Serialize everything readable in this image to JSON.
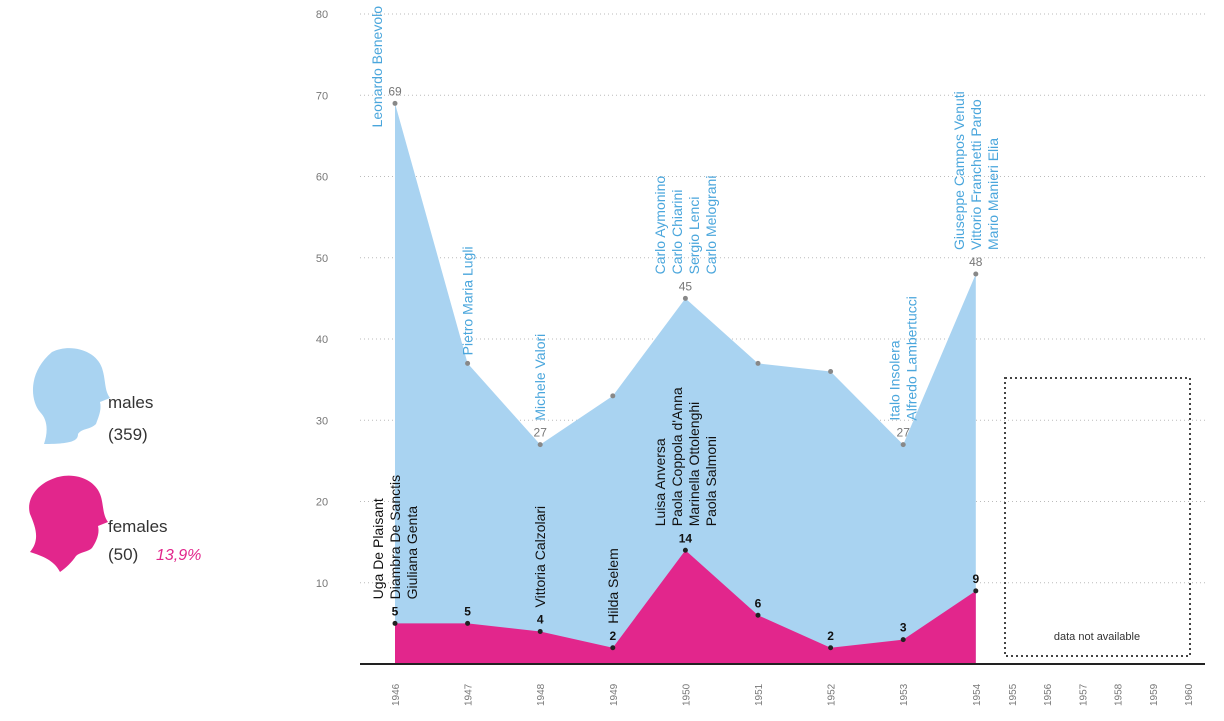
{
  "chart_data": {
    "type": "area",
    "categories": [
      "1946",
      "1947",
      "1948",
      "1949",
      "1950",
      "1951",
      "1952",
      "1953",
      "1954",
      "1955",
      "1956",
      "1957",
      "1958",
      "1959",
      "1960"
    ],
    "series": [
      {
        "name": "males",
        "color": "#a9d3f1",
        "name_color": "#4aa6dc",
        "total_label": "(359)",
        "values": [
          69,
          37,
          27,
          33,
          45,
          37,
          36,
          27,
          48,
          null,
          null,
          null,
          null,
          null,
          null
        ],
        "value_labels": [
          "69",
          null,
          "27",
          null,
          "45",
          null,
          null,
          "27",
          "48",
          null,
          null,
          null,
          null,
          null,
          null
        ],
        "names": [
          [
            "Leonardo Benevolo"
          ],
          [
            "Pietro Maria Lugli"
          ],
          [
            "Michele Valori"
          ],
          [],
          [
            "Carlo Aymonino",
            "Carlo Chiarini",
            "Sergio Lenci",
            "Carlo Melograni"
          ],
          [],
          [],
          [
            "Italo Insolera",
            "Alfredo Lambertucci"
          ],
          [
            "Giuseppe Campos Venuti",
            "Vittorio Franchetti Pardo",
            "Mario Manieri Elia"
          ],
          [],
          [],
          [],
          [],
          [],
          []
        ]
      },
      {
        "name": "females",
        "color": "#e2268c",
        "name_color": "#111111",
        "total_label": "(50)",
        "share_label": "13,9%",
        "values": [
          5,
          5,
          4,
          2,
          14,
          6,
          2,
          3,
          9,
          null,
          null,
          null,
          null,
          null,
          null
        ],
        "names": [
          [
            "Uga De Plaisant",
            "Diambra De Sanctis",
            "Giuliana Genta"
          ],
          [],
          [
            "Vittoria Calzolari"
          ],
          [
            "Hilda Selem"
          ],
          [
            "Luisa Anversa",
            "Paola Coppola d'Anna",
            "Marinella Ottolenghi",
            "Paola Salmoni"
          ],
          [],
          [],
          [],
          [],
          [],
          [],
          [],
          [],
          [],
          []
        ]
      }
    ],
    "ylim": [
      0,
      80
    ],
    "yticks": [
      10,
      20,
      30,
      40,
      50,
      60,
      70,
      80
    ],
    "grid": true,
    "note": "data not available"
  }
}
